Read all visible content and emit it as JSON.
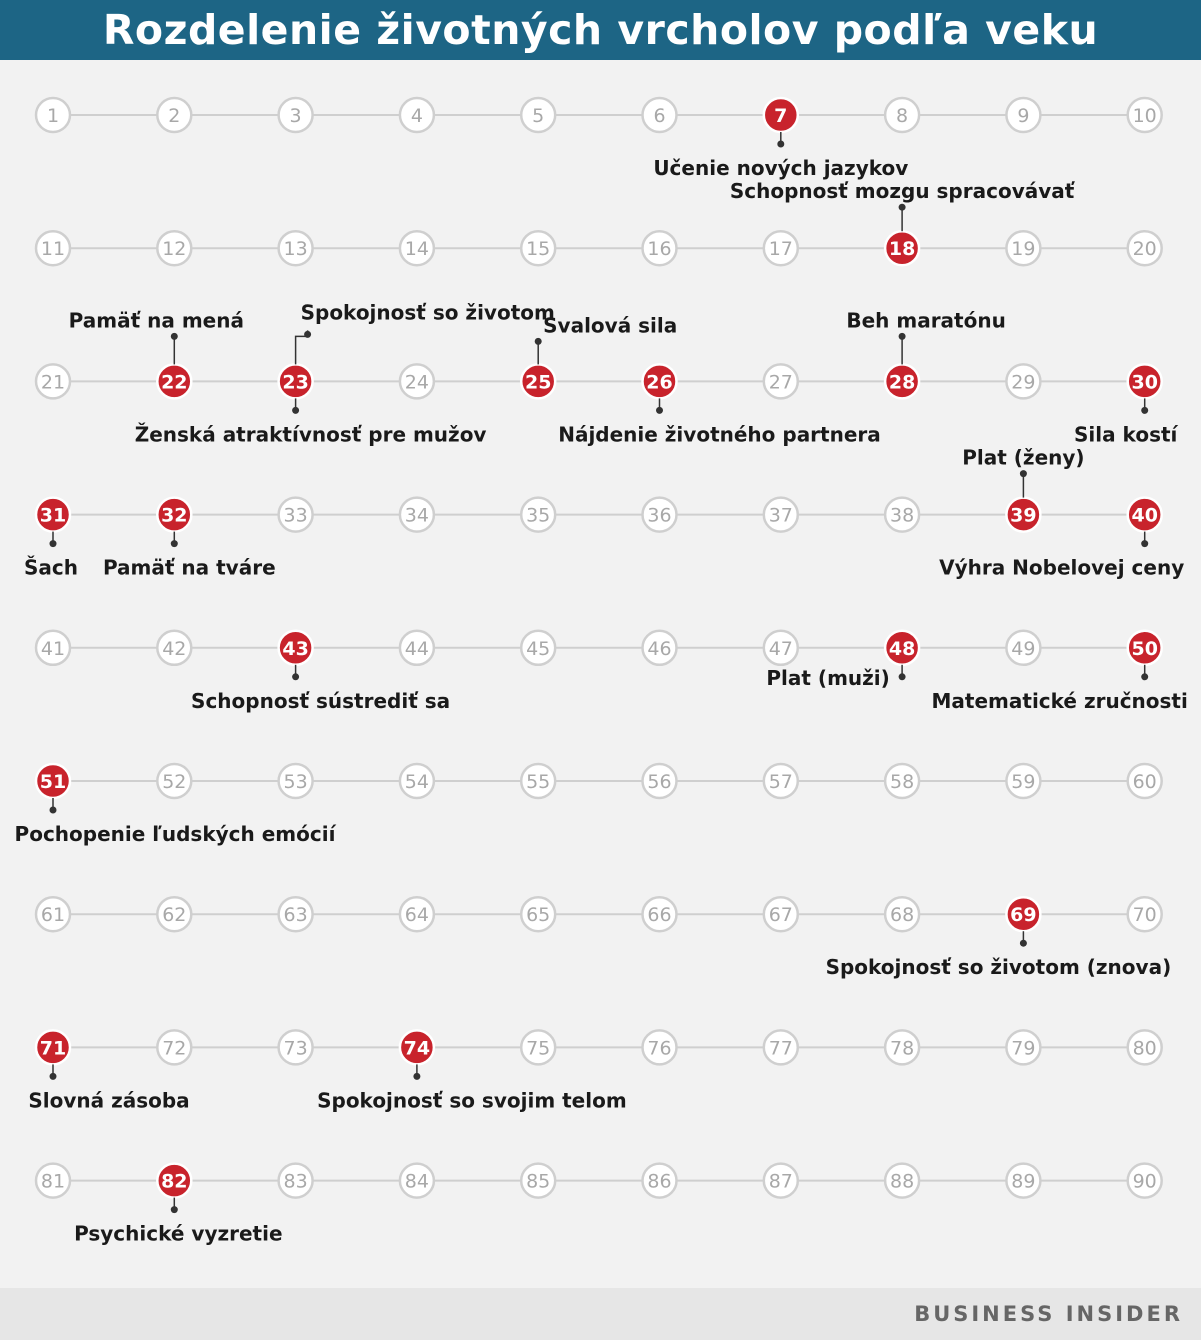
{
  "title": "Rozdelenie životných vrcholov podľa veku",
  "footer": {
    "brand": "BUSINESS INSIDER"
  },
  "colors": {
    "header_bg": "#1d6585",
    "highlight": "#c8232c",
    "node_border": "#cfcfcf",
    "node_text": "#a8a8a8",
    "line": "#cfcfcf",
    "label": "#1a1a1a"
  },
  "ages": {
    "start": 1,
    "end": 90,
    "per_row": 10
  },
  "peaks": [
    {
      "age": 7,
      "label": "Učenie nových jazykov"
    },
    {
      "age": 18,
      "label": "Schopnosť mozgu spracovávať"
    },
    {
      "age": 22,
      "label": "Pamäť na mená"
    },
    {
      "age": 23,
      "label": "Spokojnosť so životom"
    },
    {
      "age": 23,
      "label": "Ženská atraktívnosť pre mužov"
    },
    {
      "age": 25,
      "label": "Svalová sila"
    },
    {
      "age": 26,
      "label": "Nájdenie životného partnera"
    },
    {
      "age": 28,
      "label": "Beh maratónu"
    },
    {
      "age": 30,
      "label": "Sila kostí"
    },
    {
      "age": 31,
      "label": "Šach"
    },
    {
      "age": 32,
      "label": "Pamäť na tváre"
    },
    {
      "age": 39,
      "label": "Plat (ženy)"
    },
    {
      "age": 40,
      "label": "Výhra Nobelovej ceny"
    },
    {
      "age": 43,
      "label": "Schopnosť sústrediť sa"
    },
    {
      "age": 48,
      "label": "Plat (muži)"
    },
    {
      "age": 50,
      "label": "Matematické zručnosti"
    },
    {
      "age": 51,
      "label": "Pochopenie ľudských emócií"
    },
    {
      "age": 69,
      "label": "Spokojnosť so životom (znova)"
    },
    {
      "age": 71,
      "label": "Slovná zásoba"
    },
    {
      "age": 74,
      "label": "Spokojnosť so svojim telom"
    },
    {
      "age": 82,
      "label": "Psychické vyzretie"
    }
  ]
}
